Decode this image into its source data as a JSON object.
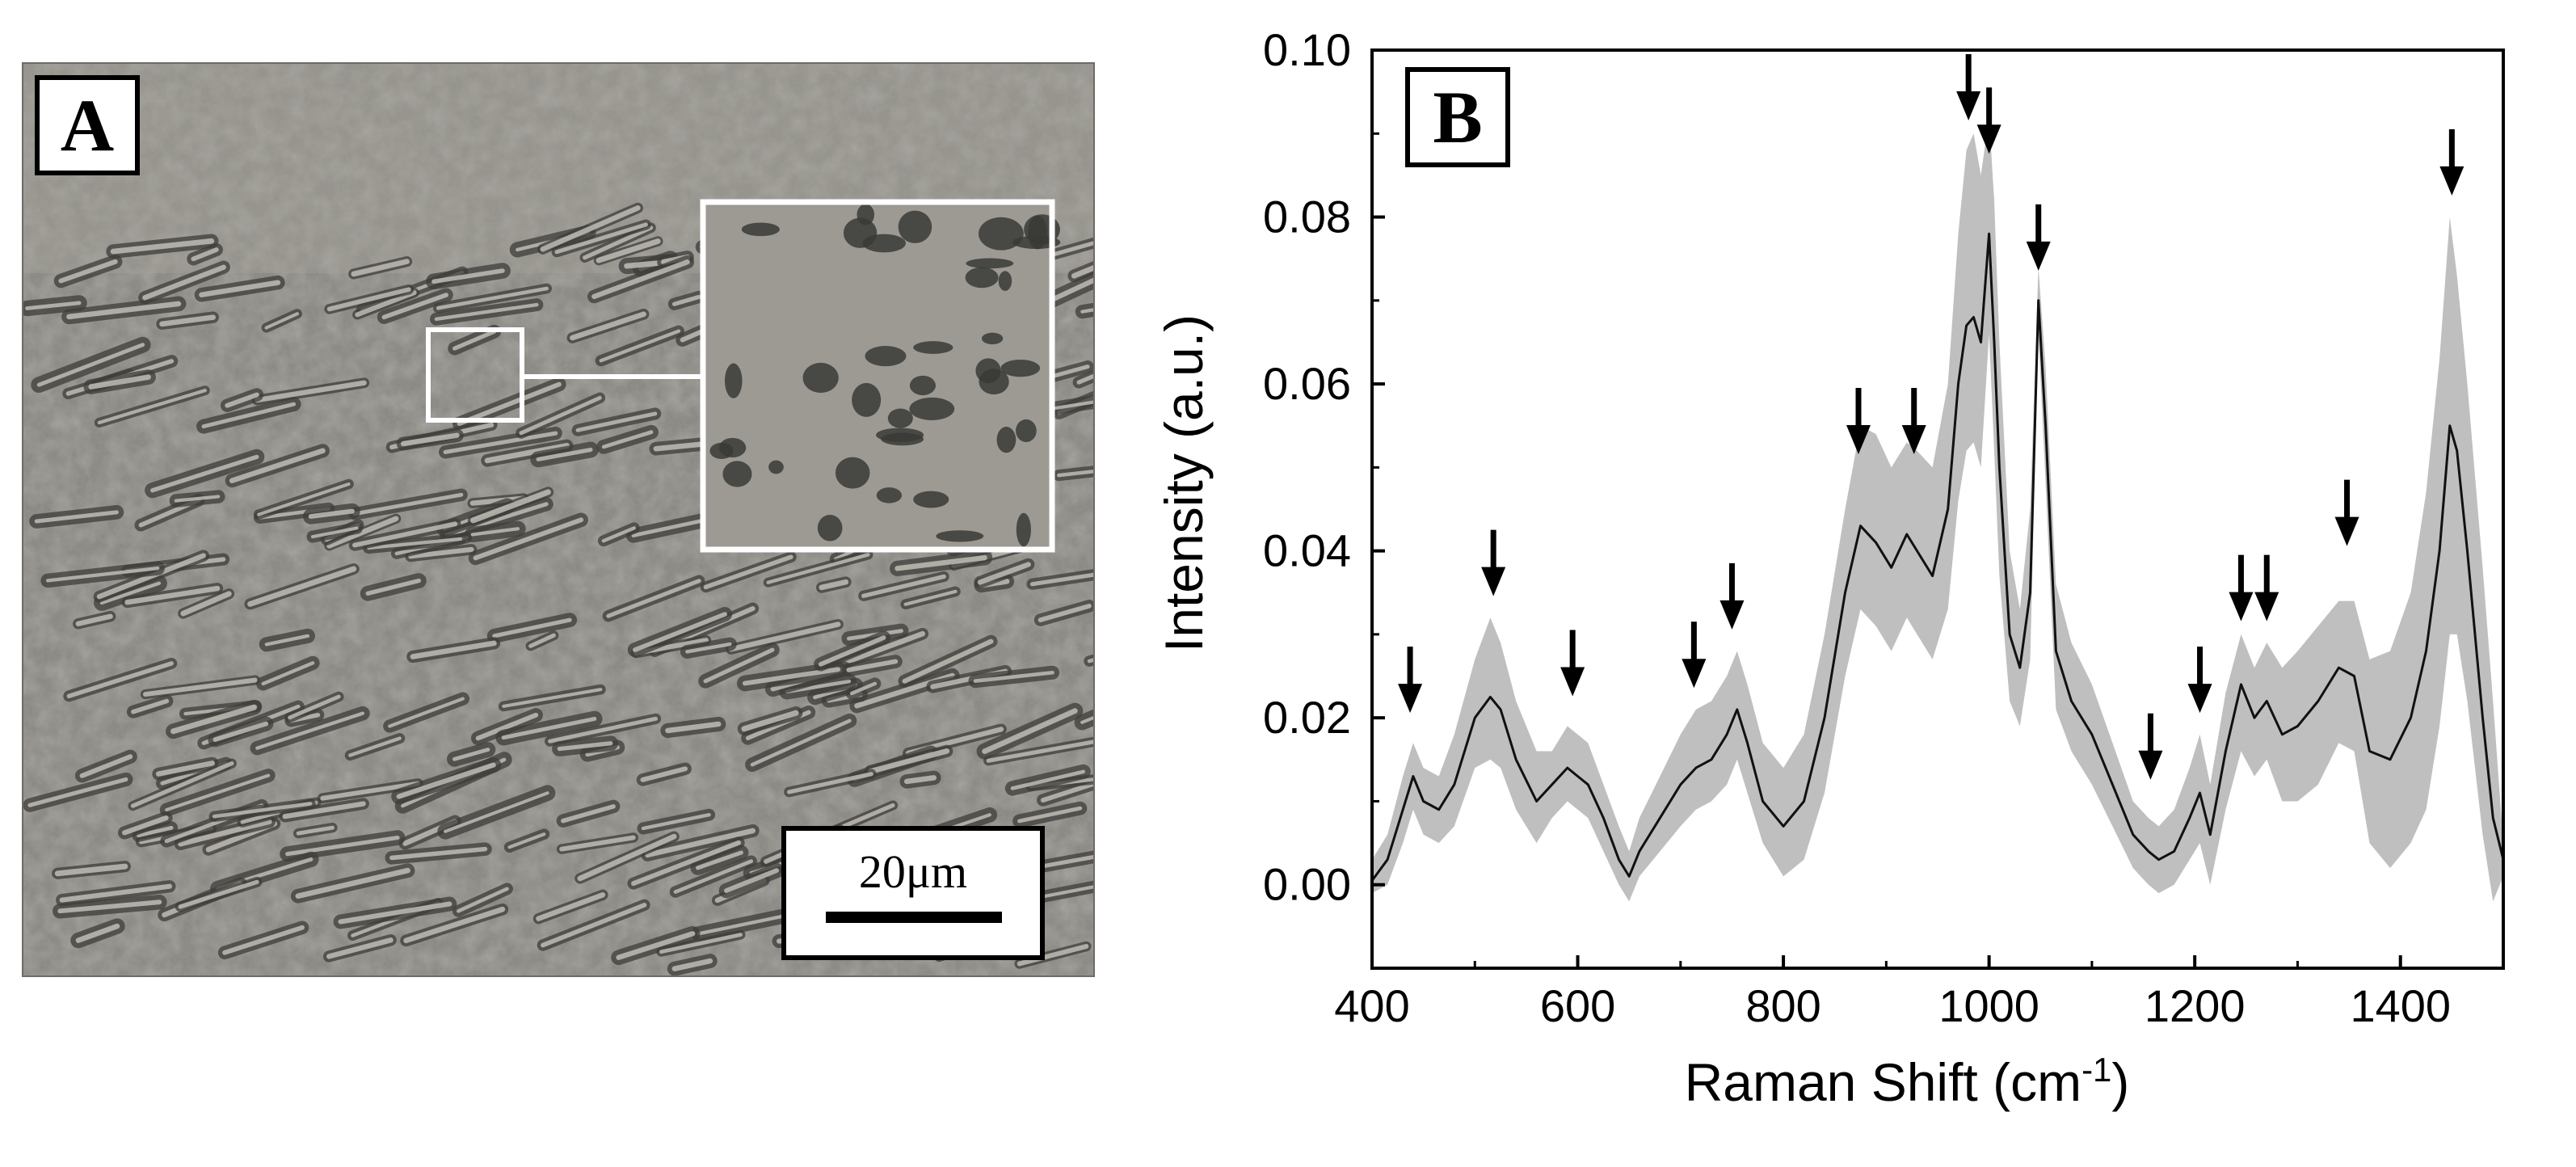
{
  "panel_a": {
    "label": "A",
    "scale_bar_label": "20μm",
    "colors": {
      "background": "#8c8a84",
      "dark_feature": "#3e3d3a",
      "light_feature": "#c6c4bc",
      "inset_frame": "#ffffff"
    }
  },
  "chart_data": {
    "type": "line",
    "panel_label": "B",
    "title": "",
    "xlabel": "Raman Shift (cm",
    "xlabel_superscript": "-1",
    "xlabel_suffix": ")",
    "ylabel": "Intensity (a.u.)",
    "xlim": [
      400,
      1500
    ],
    "ylim": [
      -0.01,
      0.1
    ],
    "x_ticks": [
      400,
      600,
      800,
      1000,
      1200,
      1400
    ],
    "x_tick_labels": [
      "400",
      "600",
      "800",
      "1000",
      "1200",
      "1400"
    ],
    "y_ticks": [
      0.0,
      0.02,
      0.04,
      0.06,
      0.08,
      0.1
    ],
    "y_tick_labels": [
      "0.00",
      "0.02",
      "0.04",
      "0.06",
      "0.08",
      "0.10"
    ],
    "grid": false,
    "colors": {
      "mean_line": "#111111",
      "band": "#bfbfbf",
      "arrow": "#000000"
    },
    "series": [
      {
        "type": "line",
        "x": [
          400,
          415,
          430,
          440,
          450,
          465,
          480,
          500,
          515,
          525,
          540,
          560,
          575,
          590,
          600,
          610,
          625,
          640,
          650,
          660,
          680,
          700,
          715,
          730,
          745,
          755,
          765,
          780,
          800,
          820,
          840,
          860,
          875,
          890,
          905,
          920,
          930,
          945,
          960,
          970,
          978,
          985,
          992,
          1000,
          1005,
          1010,
          1020,
          1030,
          1040,
          1048,
          1055,
          1065,
          1080,
          1100,
          1120,
          1140,
          1155,
          1165,
          1180,
          1195,
          1205,
          1215,
          1230,
          1245,
          1258,
          1270,
          1285,
          1300,
          1320,
          1340,
          1355,
          1370,
          1390,
          1410,
          1425,
          1438,
          1448,
          1455,
          1465,
          1480,
          1490,
          1500
        ],
        "mean": [
          0.0005,
          0.003,
          0.009,
          0.013,
          0.01,
          0.009,
          0.012,
          0.02,
          0.0225,
          0.021,
          0.015,
          0.01,
          0.012,
          0.014,
          0.013,
          0.012,
          0.008,
          0.003,
          0.001,
          0.004,
          0.008,
          0.012,
          0.014,
          0.015,
          0.018,
          0.021,
          0.017,
          0.01,
          0.007,
          0.01,
          0.02,
          0.035,
          0.043,
          0.041,
          0.038,
          0.042,
          0.04,
          0.037,
          0.045,
          0.06,
          0.067,
          0.068,
          0.065,
          0.078,
          0.065,
          0.05,
          0.03,
          0.026,
          0.035,
          0.07,
          0.055,
          0.028,
          0.022,
          0.018,
          0.012,
          0.006,
          0.004,
          0.003,
          0.004,
          0.008,
          0.011,
          0.006,
          0.016,
          0.024,
          0.02,
          0.022,
          0.018,
          0.019,
          0.022,
          0.026,
          0.025,
          0.016,
          0.015,
          0.02,
          0.028,
          0.04,
          0.055,
          0.052,
          0.04,
          0.02,
          0.008,
          0.003
        ],
        "upper": [
          0.003,
          0.006,
          0.013,
          0.017,
          0.014,
          0.013,
          0.018,
          0.027,
          0.032,
          0.029,
          0.022,
          0.016,
          0.016,
          0.019,
          0.018,
          0.017,
          0.012,
          0.007,
          0.004,
          0.008,
          0.013,
          0.018,
          0.021,
          0.022,
          0.025,
          0.028,
          0.024,
          0.017,
          0.014,
          0.018,
          0.03,
          0.045,
          0.055,
          0.054,
          0.05,
          0.053,
          0.052,
          0.05,
          0.06,
          0.078,
          0.088,
          0.09,
          0.085,
          0.092,
          0.082,
          0.065,
          0.04,
          0.033,
          0.045,
          0.074,
          0.062,
          0.036,
          0.029,
          0.024,
          0.017,
          0.01,
          0.008,
          0.007,
          0.009,
          0.014,
          0.018,
          0.012,
          0.023,
          0.03,
          0.026,
          0.029,
          0.026,
          0.028,
          0.031,
          0.034,
          0.034,
          0.027,
          0.028,
          0.035,
          0.047,
          0.063,
          0.08,
          0.073,
          0.06,
          0.038,
          0.022,
          0.005
        ],
        "lower": [
          -0.001,
          0.0,
          0.005,
          0.009,
          0.006,
          0.005,
          0.007,
          0.014,
          0.015,
          0.014,
          0.009,
          0.005,
          0.008,
          0.01,
          0.009,
          0.008,
          0.004,
          0.0,
          -0.002,
          0.001,
          0.004,
          0.007,
          0.009,
          0.01,
          0.012,
          0.015,
          0.011,
          0.005,
          0.001,
          0.003,
          0.011,
          0.025,
          0.033,
          0.031,
          0.028,
          0.032,
          0.03,
          0.027,
          0.033,
          0.046,
          0.052,
          0.053,
          0.05,
          0.066,
          0.052,
          0.037,
          0.022,
          0.019,
          0.027,
          0.066,
          0.048,
          0.021,
          0.016,
          0.012,
          0.007,
          0.002,
          0.0,
          -0.001,
          0.0,
          0.003,
          0.005,
          0.0,
          0.009,
          0.016,
          0.013,
          0.015,
          0.01,
          0.01,
          0.012,
          0.017,
          0.016,
          0.005,
          0.002,
          0.005,
          0.009,
          0.019,
          0.03,
          0.03,
          0.022,
          0.006,
          -0.002,
          0.001
        ]
      }
    ],
    "arrow_peaks": [
      {
        "x": 437,
        "y": 0.02
      },
      {
        "x": 518,
        "y": 0.034
      },
      {
        "x": 595,
        "y": 0.022
      },
      {
        "x": 713,
        "y": 0.023
      },
      {
        "x": 750,
        "y": 0.03
      },
      {
        "x": 873,
        "y": 0.051
      },
      {
        "x": 927,
        "y": 0.051
      },
      {
        "x": 980,
        "y": 0.091
      },
      {
        "x": 1000,
        "y": 0.087
      },
      {
        "x": 1048,
        "y": 0.073
      },
      {
        "x": 1157,
        "y": 0.012
      },
      {
        "x": 1205,
        "y": 0.02
      },
      {
        "x": 1245,
        "y": 0.031
      },
      {
        "x": 1270,
        "y": 0.031
      },
      {
        "x": 1348,
        "y": 0.04
      },
      {
        "x": 1450,
        "y": 0.082
      }
    ]
  }
}
